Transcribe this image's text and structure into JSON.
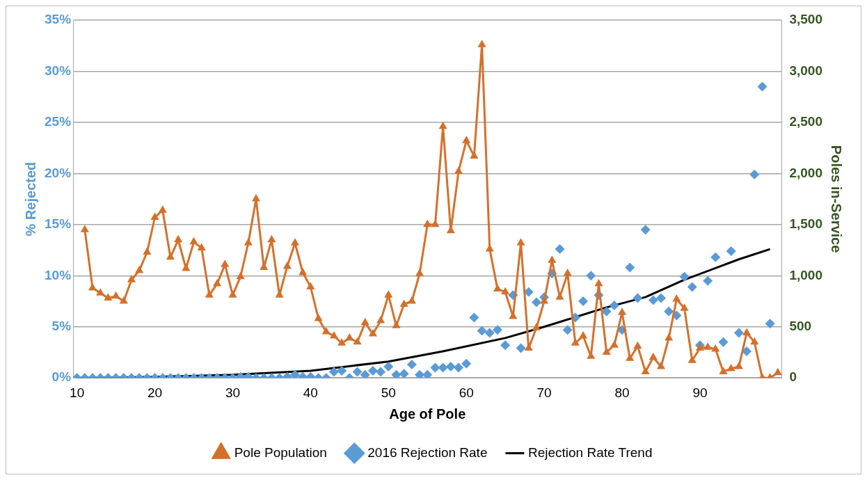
{
  "chart_data": {
    "type": "line",
    "xlabel": "Age of Pole",
    "ylabel": "% Rejected",
    "y2label": "Poles in-Service",
    "xlim": [
      9.5,
      100.5
    ],
    "xticks": [
      10,
      20,
      30,
      40,
      50,
      60,
      70,
      80,
      90
    ],
    "ylim": [
      0,
      35
    ],
    "yticks": [
      {
        "value": 0,
        "label": "0%"
      },
      {
        "value": 5,
        "label": "5%"
      },
      {
        "value": 10,
        "label": "10%"
      },
      {
        "value": 15,
        "label": "15%"
      },
      {
        "value": 20,
        "label": "20%"
      },
      {
        "value": 25,
        "label": "25%"
      },
      {
        "value": 30,
        "label": "30%"
      },
      {
        "value": 35,
        "label": "35%"
      }
    ],
    "y2lim": [
      0,
      3500
    ],
    "y2ticks": [
      0,
      500,
      {
        "value": 1000,
        "label": "1,000"
      },
      {
        "value": 1500,
        "label": "1,500"
      },
      {
        "value": 2000,
        "label": "2,000"
      },
      {
        "value": 2500,
        "label": "2,500"
      },
      {
        "value": 3000,
        "label": "3,000"
      },
      {
        "value": 3500,
        "label": "3,500"
      }
    ],
    "grid": "y",
    "legend": "bottom",
    "series": [
      {
        "name": "Pole Population",
        "axis": "y2",
        "marker": "triangle",
        "line_style": "solid",
        "color": "#d4702b",
        "x": [
          11,
          12,
          13,
          14,
          15,
          16,
          17,
          18,
          19,
          20,
          21,
          22,
          23,
          24,
          25,
          26,
          27,
          28,
          29,
          30,
          31,
          32,
          33,
          34,
          35,
          36,
          37,
          38,
          39,
          40,
          41,
          42,
          43,
          44,
          45,
          46,
          47,
          48,
          49,
          50,
          51,
          52,
          53,
          54,
          55,
          56,
          57,
          58,
          59,
          60,
          61,
          62,
          63,
          64,
          65,
          66,
          67,
          68,
          69,
          70,
          71,
          72,
          73,
          74,
          75,
          76,
          77,
          78,
          79,
          80,
          81,
          82,
          83,
          84,
          85,
          86,
          87,
          88,
          89,
          90,
          91,
          92,
          93,
          94,
          95,
          96,
          97,
          98,
          99,
          100
        ],
        "values": [
          1450,
          880,
          830,
          780,
          800,
          750,
          960,
          1050,
          1230,
          1570,
          1640,
          1180,
          1350,
          1070,
          1330,
          1270,
          810,
          920,
          1110,
          810,
          990,
          1320,
          1750,
          1080,
          1350,
          810,
          1090,
          1320,
          1030,
          890,
          580,
          450,
          410,
          340,
          390,
          350,
          540,
          430,
          560,
          810,
          510,
          720,
          750,
          1020,
          1500,
          1500,
          2460,
          1440,
          2020,
          2320,
          2170,
          3260,
          1260,
          870,
          840,
          600,
          1320,
          290,
          490,
          750,
          1150,
          790,
          1020,
          340,
          410,
          210,
          920,
          250,
          320,
          640,
          190,
          310,
          60,
          200,
          110,
          390,
          770,
          680,
          170,
          290,
          300,
          280,
          60,
          90,
          110,
          440,
          350,
          0,
          0,
          50
        ]
      },
      {
        "name": "2016 Rejection Rate",
        "type": "scatter",
        "axis": "y",
        "marker": "diamond",
        "color": "#5b9bd5",
        "x": [
          10,
          11,
          12,
          13,
          14,
          15,
          16,
          17,
          18,
          19,
          20,
          21,
          22,
          23,
          24,
          25,
          26,
          27,
          28,
          29,
          30,
          31,
          32,
          33,
          34,
          35,
          36,
          37,
          38,
          39,
          40,
          41,
          42,
          43,
          44,
          45,
          46,
          47,
          48,
          49,
          50,
          51,
          52,
          53,
          54,
          55,
          56,
          57,
          58,
          59,
          60,
          61,
          62,
          63,
          64,
          65,
          66,
          67,
          68,
          69,
          70,
          71,
          72,
          73,
          74,
          75,
          76,
          77,
          78,
          79,
          80,
          81,
          82,
          83,
          84,
          85,
          86,
          87,
          88,
          89,
          90,
          91,
          92,
          93,
          94,
          95,
          96,
          97,
          98,
          99
        ],
        "values": [
          0,
          0,
          0,
          0,
          0,
          0,
          0,
          0,
          0,
          0,
          0,
          0,
          0,
          0,
          0,
          0,
          0,
          0,
          0,
          0,
          0,
          0.1,
          0.1,
          0,
          0,
          0,
          0,
          0.1,
          0.3,
          0.1,
          0.1,
          0,
          0,
          0.6,
          0.7,
          0,
          0.6,
          0.3,
          0.7,
          0.6,
          1.1,
          0.3,
          0.4,
          1.3,
          0.3,
          0.3,
          1.0,
          1.0,
          1.1,
          1.0,
          1.4,
          5.9,
          4.6,
          4.4,
          4.7,
          3.2,
          8.1,
          2.9,
          8.4,
          7.4,
          7.9,
          10.2,
          12.6,
          4.7,
          5.9,
          7.5,
          10.0,
          8.1,
          6.5,
          7.1,
          4.7,
          10.8,
          7.8,
          14.5,
          7.6,
          7.8,
          6.5,
          6.1,
          9.9,
          8.9,
          3.2,
          9.5,
          11.8,
          3.5,
          12.4,
          4.4,
          2.6,
          19.9,
          28.5,
          5.3
        ]
      },
      {
        "name": "Rejection Rate Trend",
        "axis": "y",
        "marker": "none",
        "line_style": "solid",
        "color": "#000000",
        "x": [
          10,
          20,
          30,
          40,
          50,
          57,
          65,
          70,
          78,
          83,
          88,
          95,
          99
        ],
        "values": [
          0,
          0.1,
          0.3,
          0.7,
          1.6,
          2.6,
          3.9,
          5.0,
          6.9,
          7.9,
          9.6,
          11.6,
          12.6
        ]
      }
    ]
  }
}
